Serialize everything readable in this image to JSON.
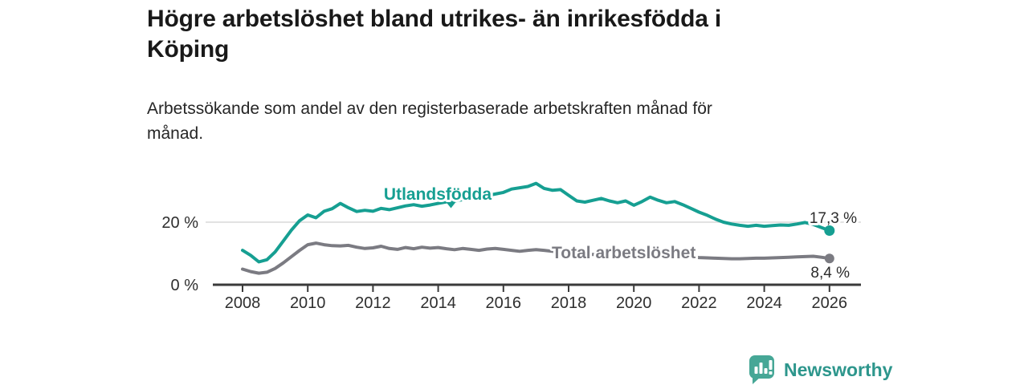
{
  "header": {
    "title_lines": [
      "Högre arbetslöshet bland utrikes- än inrikesfödda i",
      "Köping"
    ],
    "subtitle_lines": [
      "Arbetssökande som andel av den registerbaserade arbetskraften månad för",
      "månad."
    ]
  },
  "chart_data": {
    "type": "line",
    "title": "Högre arbetslöshet bland utrikes- än inrikesfödda i Köping",
    "subtitle": "Arbetssökande som andel av den registerbaserade arbetskraften månad för månad.",
    "xlabel": "",
    "ylabel": "",
    "unit": "%",
    "x_range": [
      2007.1,
      2027.0
    ],
    "y_axis": {
      "ticks": [
        {
          "value": 0,
          "label": "0 %"
        },
        {
          "value": 20,
          "label": "20 %"
        }
      ],
      "gridline_values": [
        20
      ]
    },
    "x_ticks": [
      {
        "value": 2008,
        "label": "2008"
      },
      {
        "value": 2010,
        "label": "2010"
      },
      {
        "value": 2012,
        "label": "2012"
      },
      {
        "value": 2014,
        "label": "2014"
      },
      {
        "value": 2016,
        "label": "2016"
      },
      {
        "value": 2018,
        "label": "2018"
      },
      {
        "value": 2020,
        "label": "2020"
      },
      {
        "value": 2022,
        "label": "2022"
      },
      {
        "value": 2024,
        "label": "2024"
      },
      {
        "value": 2026,
        "label": "2026"
      }
    ],
    "legend": "inline-labels-on-lines",
    "grid": "horizontal-20-percent-only",
    "series": [
      {
        "name": "Utlandsfödda",
        "color": "#169f92",
        "end_value_label": "17,3 %",
        "end_value": 17.3,
        "points": [
          [
            2008.0,
            11.0
          ],
          [
            2008.25,
            9.4
          ],
          [
            2008.5,
            7.3
          ],
          [
            2008.75,
            8.0
          ],
          [
            2009.0,
            10.5
          ],
          [
            2009.25,
            14.0
          ],
          [
            2009.5,
            17.5
          ],
          [
            2009.75,
            20.5
          ],
          [
            2010.0,
            22.3
          ],
          [
            2010.25,
            21.4
          ],
          [
            2010.5,
            23.5
          ],
          [
            2010.75,
            24.3
          ],
          [
            2011.0,
            26.0
          ],
          [
            2011.25,
            24.6
          ],
          [
            2011.5,
            23.4
          ],
          [
            2011.75,
            23.8
          ],
          [
            2012.0,
            23.5
          ],
          [
            2012.25,
            24.4
          ],
          [
            2012.5,
            24.0
          ],
          [
            2012.75,
            24.6
          ],
          [
            2013.0,
            25.2
          ],
          [
            2013.25,
            25.6
          ],
          [
            2013.5,
            25.1
          ],
          [
            2013.75,
            25.5
          ],
          [
            2014.0,
            26.0
          ],
          [
            2014.25,
            26.5
          ],
          [
            2014.5,
            26.8
          ],
          [
            2014.75,
            27.2
          ],
          [
            2015.0,
            27.6
          ],
          [
            2015.25,
            28.0
          ],
          [
            2015.5,
            28.5
          ],
          [
            2015.75,
            29.0
          ],
          [
            2016.0,
            29.5
          ],
          [
            2016.25,
            30.6
          ],
          [
            2016.5,
            31.0
          ],
          [
            2016.75,
            31.4
          ],
          [
            2017.0,
            32.4
          ],
          [
            2017.25,
            30.8
          ],
          [
            2017.5,
            30.2
          ],
          [
            2017.75,
            30.4
          ],
          [
            2018.0,
            28.6
          ],
          [
            2018.25,
            26.8
          ],
          [
            2018.5,
            26.4
          ],
          [
            2018.75,
            27.0
          ],
          [
            2019.0,
            27.6
          ],
          [
            2019.25,
            26.8
          ],
          [
            2019.5,
            26.2
          ],
          [
            2019.75,
            26.8
          ],
          [
            2020.0,
            25.4
          ],
          [
            2020.25,
            26.6
          ],
          [
            2020.5,
            28.0
          ],
          [
            2020.75,
            27.0
          ],
          [
            2021.0,
            26.2
          ],
          [
            2021.25,
            26.6
          ],
          [
            2021.5,
            25.6
          ],
          [
            2021.75,
            24.4
          ],
          [
            2022.0,
            23.2
          ],
          [
            2022.25,
            22.2
          ],
          [
            2022.5,
            21.0
          ],
          [
            2022.75,
            20.0
          ],
          [
            2023.0,
            19.4
          ],
          [
            2023.25,
            19.0
          ],
          [
            2023.5,
            18.7
          ],
          [
            2023.75,
            19.0
          ],
          [
            2024.0,
            18.7
          ],
          [
            2024.25,
            18.9
          ],
          [
            2024.5,
            19.1
          ],
          [
            2024.75,
            19.0
          ],
          [
            2025.0,
            19.4
          ],
          [
            2025.25,
            19.9
          ],
          [
            2025.5,
            19.3
          ],
          [
            2025.75,
            18.3
          ],
          [
            2026.0,
            17.3
          ]
        ]
      },
      {
        "name": "Total arbetslöshet",
        "color": "#7b7b82",
        "end_value_label": "8,4 %",
        "end_value": 8.4,
        "points": [
          [
            2008.0,
            5.0
          ],
          [
            2008.25,
            4.2
          ],
          [
            2008.5,
            3.7
          ],
          [
            2008.75,
            4.0
          ],
          [
            2009.0,
            5.2
          ],
          [
            2009.25,
            7.0
          ],
          [
            2009.5,
            9.0
          ],
          [
            2009.75,
            11.0
          ],
          [
            2010.0,
            12.8
          ],
          [
            2010.25,
            13.3
          ],
          [
            2010.5,
            12.8
          ],
          [
            2010.75,
            12.5
          ],
          [
            2011.0,
            12.4
          ],
          [
            2011.25,
            12.6
          ],
          [
            2011.5,
            12.0
          ],
          [
            2011.75,
            11.6
          ],
          [
            2012.0,
            11.8
          ],
          [
            2012.25,
            12.3
          ],
          [
            2012.5,
            11.6
          ],
          [
            2012.75,
            11.3
          ],
          [
            2013.0,
            11.9
          ],
          [
            2013.25,
            11.5
          ],
          [
            2013.5,
            12.0
          ],
          [
            2013.75,
            11.7
          ],
          [
            2014.0,
            11.9
          ],
          [
            2014.25,
            11.5
          ],
          [
            2014.5,
            11.2
          ],
          [
            2014.75,
            11.6
          ],
          [
            2015.0,
            11.3
          ],
          [
            2015.25,
            11.0
          ],
          [
            2015.5,
            11.4
          ],
          [
            2015.75,
            11.6
          ],
          [
            2016.0,
            11.3
          ],
          [
            2016.25,
            11.0
          ],
          [
            2016.5,
            10.7
          ],
          [
            2016.75,
            11.0
          ],
          [
            2017.0,
            11.2
          ],
          [
            2017.25,
            11.0
          ],
          [
            2017.5,
            10.7
          ],
          [
            2017.75,
            10.5
          ],
          [
            2018.0,
            10.3
          ],
          [
            2018.25,
            10.0
          ],
          [
            2018.5,
            9.8
          ],
          [
            2018.75,
            9.7
          ],
          [
            2019.0,
            9.6
          ],
          [
            2019.25,
            9.5
          ],
          [
            2019.5,
            9.4
          ],
          [
            2019.75,
            9.5
          ],
          [
            2020.0,
            9.7
          ],
          [
            2020.25,
            10.1
          ],
          [
            2020.5,
            10.3
          ],
          [
            2020.75,
            9.9
          ],
          [
            2021.0,
            9.6
          ],
          [
            2021.25,
            9.4
          ],
          [
            2021.5,
            9.1
          ],
          [
            2021.75,
            8.9
          ],
          [
            2022.0,
            8.7
          ],
          [
            2022.25,
            8.6
          ],
          [
            2022.5,
            8.5
          ],
          [
            2022.75,
            8.4
          ],
          [
            2023.0,
            8.3
          ],
          [
            2023.25,
            8.3
          ],
          [
            2023.5,
            8.4
          ],
          [
            2023.75,
            8.5
          ],
          [
            2024.0,
            8.5
          ],
          [
            2024.25,
            8.6
          ],
          [
            2024.5,
            8.7
          ],
          [
            2024.75,
            8.8
          ],
          [
            2025.0,
            8.9
          ],
          [
            2025.25,
            9.0
          ],
          [
            2025.5,
            9.1
          ],
          [
            2025.75,
            8.8
          ],
          [
            2026.0,
            8.4
          ]
        ]
      }
    ]
  },
  "footer": {
    "brand": "Newsworthy",
    "brand_color": "#2d968c",
    "logo_icon": "speech-bubble-bar-chart-icon"
  }
}
